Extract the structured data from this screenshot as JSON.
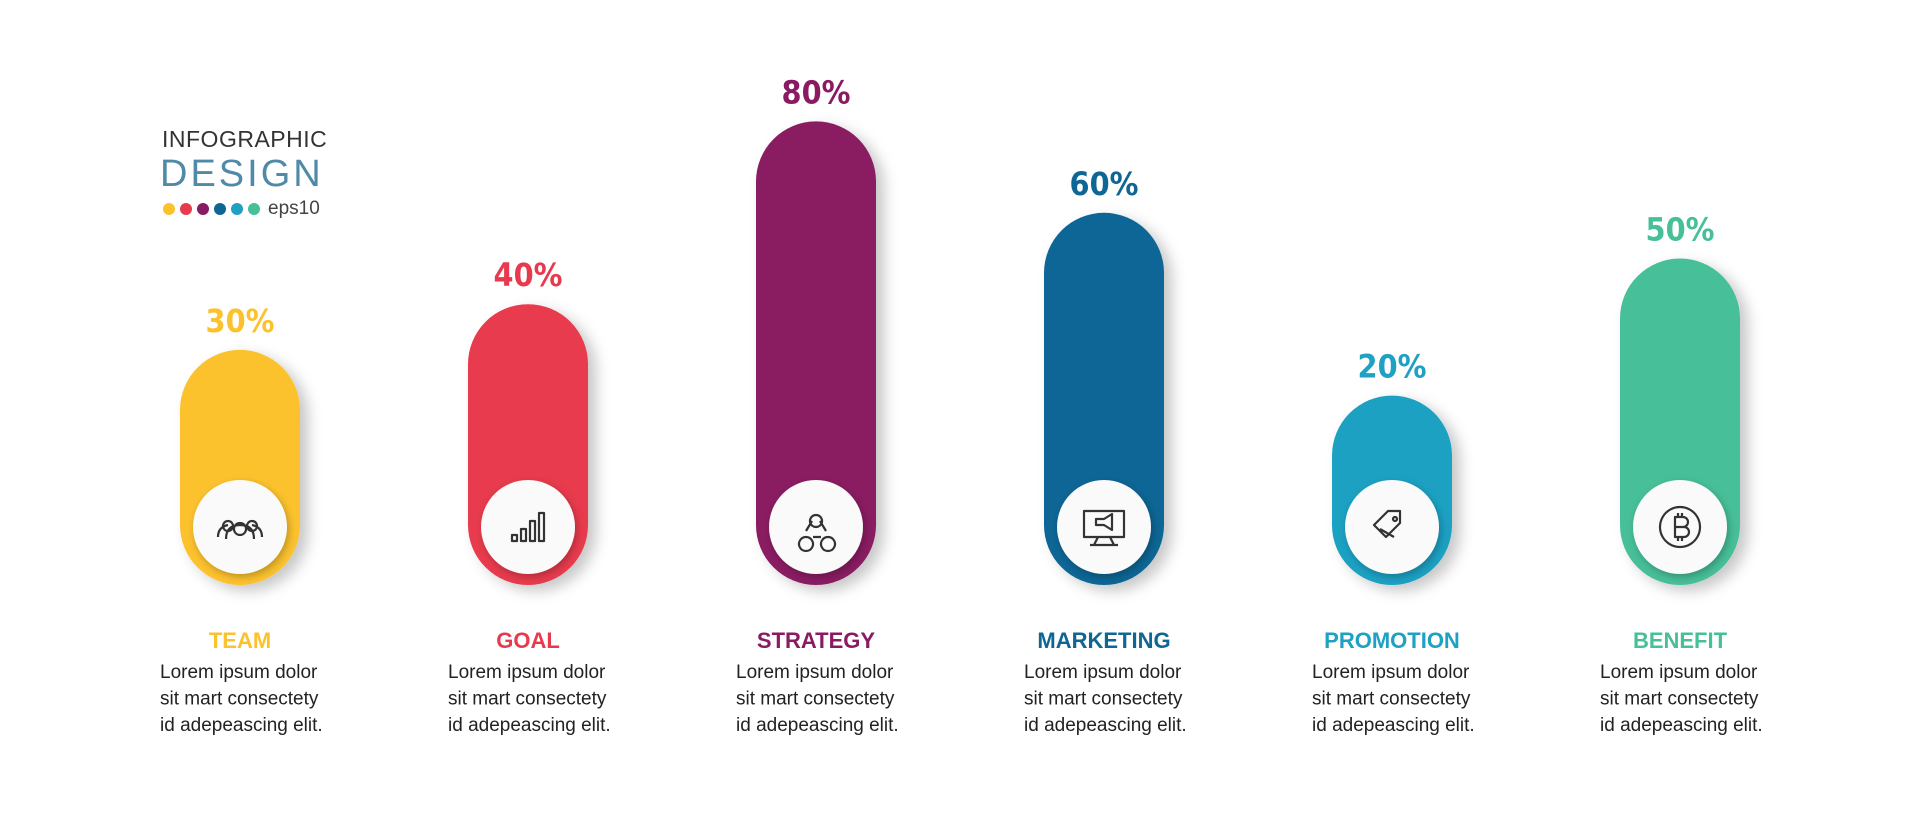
{
  "chart_data": {
    "type": "bar",
    "title": "INFOGRAPHIC",
    "subtitle": "DESIGN",
    "note": "eps10",
    "categories": [
      "TEAM",
      "GOAL",
      "STRATEGY",
      "MARKETING",
      "PROMOTION",
      "BENEFIT"
    ],
    "values": [
      30,
      40,
      80,
      60,
      20,
      50
    ],
    "value_labels": [
      "30%",
      "40%",
      "80%",
      "60%",
      "20%",
      "50%"
    ],
    "colors": [
      "#fcc22d",
      "#e83a4e",
      "#8a1b62",
      "#0e6695",
      "#1ea1c3",
      "#47bf99"
    ],
    "descriptions": [
      [
        "Lorem ipsum dolor",
        "sit mart consectety",
        "id adepeascing elit."
      ],
      [
        "Lorem ipsum dolor",
        "sit mart consectety",
        "id adepeascing elit."
      ],
      [
        "Lorem ipsum dolor",
        "sit mart consectety",
        "id adepeascing elit."
      ],
      [
        "Lorem ipsum dolor",
        "sit mart consectety",
        "id adepeascing elit."
      ],
      [
        "Lorem ipsum dolor",
        "sit mart consectety",
        "id adepeascing elit."
      ],
      [
        "Lorem ipsum dolor",
        "sit mart consectety",
        "id adepeascing elit."
      ]
    ]
  }
}
